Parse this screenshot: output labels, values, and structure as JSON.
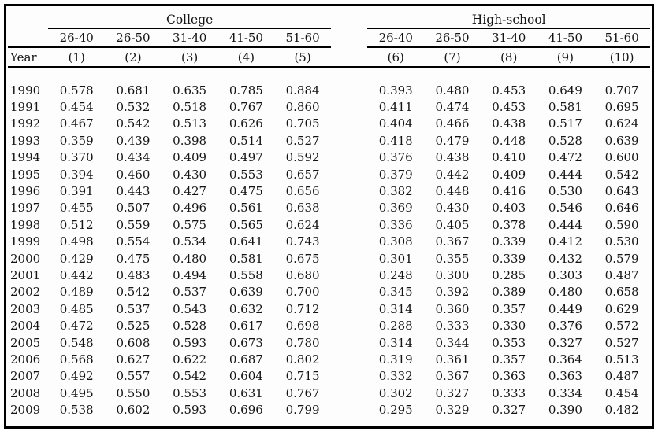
{
  "table": {
    "year_header": "Year",
    "groups": [
      {
        "label": "College",
        "age_ranges": [
          "26-40",
          "26-50",
          "31-40",
          "41-50",
          "51-60"
        ],
        "col_numbers": [
          "(1)",
          "(2)",
          "(3)",
          "(4)",
          "(5)"
        ]
      },
      {
        "label": "High-school",
        "age_ranges": [
          "26-40",
          "26-50",
          "31-40",
          "41-50",
          "51-60"
        ],
        "col_numbers": [
          "(6)",
          "(7)",
          "(8)",
          "(9)",
          "(10)"
        ]
      }
    ],
    "rows": [
      {
        "year": "1990",
        "college": [
          "0.578",
          "0.681",
          "0.635",
          "0.785",
          "0.884"
        ],
        "highschool": [
          "0.393",
          "0.480",
          "0.453",
          "0.649",
          "0.707"
        ]
      },
      {
        "year": "1991",
        "college": [
          "0.454",
          "0.532",
          "0.518",
          "0.767",
          "0.860"
        ],
        "highschool": [
          "0.411",
          "0.474",
          "0.453",
          "0.581",
          "0.695"
        ]
      },
      {
        "year": "1992",
        "college": [
          "0.467",
          "0.542",
          "0.513",
          "0.626",
          "0.705"
        ],
        "highschool": [
          "0.404",
          "0.466",
          "0.438",
          "0.517",
          "0.624"
        ]
      },
      {
        "year": "1993",
        "college": [
          "0.359",
          "0.439",
          "0.398",
          "0.514",
          "0.527"
        ],
        "highschool": [
          "0.418",
          "0.479",
          "0.448",
          "0.528",
          "0.639"
        ]
      },
      {
        "year": "1994",
        "college": [
          "0.370",
          "0.434",
          "0.409",
          "0.497",
          "0.592"
        ],
        "highschool": [
          "0.376",
          "0.438",
          "0.410",
          "0.472",
          "0.600"
        ]
      },
      {
        "year": "1995",
        "college": [
          "0.394",
          "0.460",
          "0.430",
          "0.553",
          "0.657"
        ],
        "highschool": [
          "0.379",
          "0.442",
          "0.409",
          "0.444",
          "0.542"
        ]
      },
      {
        "year": "1996",
        "college": [
          "0.391",
          "0.443",
          "0.427",
          "0.475",
          "0.656"
        ],
        "highschool": [
          "0.382",
          "0.448",
          "0.416",
          "0.530",
          "0.643"
        ]
      },
      {
        "year": "1997",
        "college": [
          "0.455",
          "0.507",
          "0.496",
          "0.561",
          "0.638"
        ],
        "highschool": [
          "0.369",
          "0.430",
          "0.403",
          "0.546",
          "0.646"
        ]
      },
      {
        "year": "1998",
        "college": [
          "0.512",
          "0.559",
          "0.575",
          "0.565",
          "0.624"
        ],
        "highschool": [
          "0.336",
          "0.405",
          "0.378",
          "0.444",
          "0.590"
        ]
      },
      {
        "year": "1999",
        "college": [
          "0.498",
          "0.554",
          "0.534",
          "0.641",
          "0.743"
        ],
        "highschool": [
          "0.308",
          "0.367",
          "0.339",
          "0.412",
          "0.530"
        ]
      },
      {
        "year": "2000",
        "college": [
          "0.429",
          "0.475",
          "0.480",
          "0.581",
          "0.675"
        ],
        "highschool": [
          "0.301",
          "0.355",
          "0.339",
          "0.432",
          "0.579"
        ]
      },
      {
        "year": "2001",
        "college": [
          "0.442",
          "0.483",
          "0.494",
          "0.558",
          "0.680"
        ],
        "highschool": [
          "0.248",
          "0.300",
          "0.285",
          "0.303",
          "0.487"
        ]
      },
      {
        "year": "2002",
        "college": [
          "0.489",
          "0.542",
          "0.537",
          "0.639",
          "0.700"
        ],
        "highschool": [
          "0.345",
          "0.392",
          "0.389",
          "0.480",
          "0.658"
        ]
      },
      {
        "year": "2003",
        "college": [
          "0.485",
          "0.537",
          "0.543",
          "0.632",
          "0.712"
        ],
        "highschool": [
          "0.314",
          "0.360",
          "0.357",
          "0.449",
          "0.629"
        ]
      },
      {
        "year": "2004",
        "college": [
          "0.472",
          "0.525",
          "0.528",
          "0.617",
          "0.698"
        ],
        "highschool": [
          "0.288",
          "0.333",
          "0.330",
          "0.376",
          "0.572"
        ]
      },
      {
        "year": "2005",
        "college": [
          "0.548",
          "0.608",
          "0.593",
          "0.673",
          "0.780"
        ],
        "highschool": [
          "0.314",
          "0.344",
          "0.353",
          "0.327",
          "0.527"
        ]
      },
      {
        "year": "2006",
        "college": [
          "0.568",
          "0.627",
          "0.622",
          "0.687",
          "0.802"
        ],
        "highschool": [
          "0.319",
          "0.361",
          "0.357",
          "0.364",
          "0.513"
        ]
      },
      {
        "year": "2007",
        "college": [
          "0.492",
          "0.557",
          "0.542",
          "0.604",
          "0.715"
        ],
        "highschool": [
          "0.332",
          "0.367",
          "0.363",
          "0.363",
          "0.487"
        ]
      },
      {
        "year": "2008",
        "college": [
          "0.495",
          "0.550",
          "0.553",
          "0.631",
          "0.767"
        ],
        "highschool": [
          "0.302",
          "0.327",
          "0.333",
          "0.334",
          "0.454"
        ]
      },
      {
        "year": "2009",
        "college": [
          "0.538",
          "0.602",
          "0.593",
          "0.696",
          "0.799"
        ],
        "highschool": [
          "0.295",
          "0.329",
          "0.327",
          "0.390",
          "0.482"
        ]
      }
    ]
  }
}
